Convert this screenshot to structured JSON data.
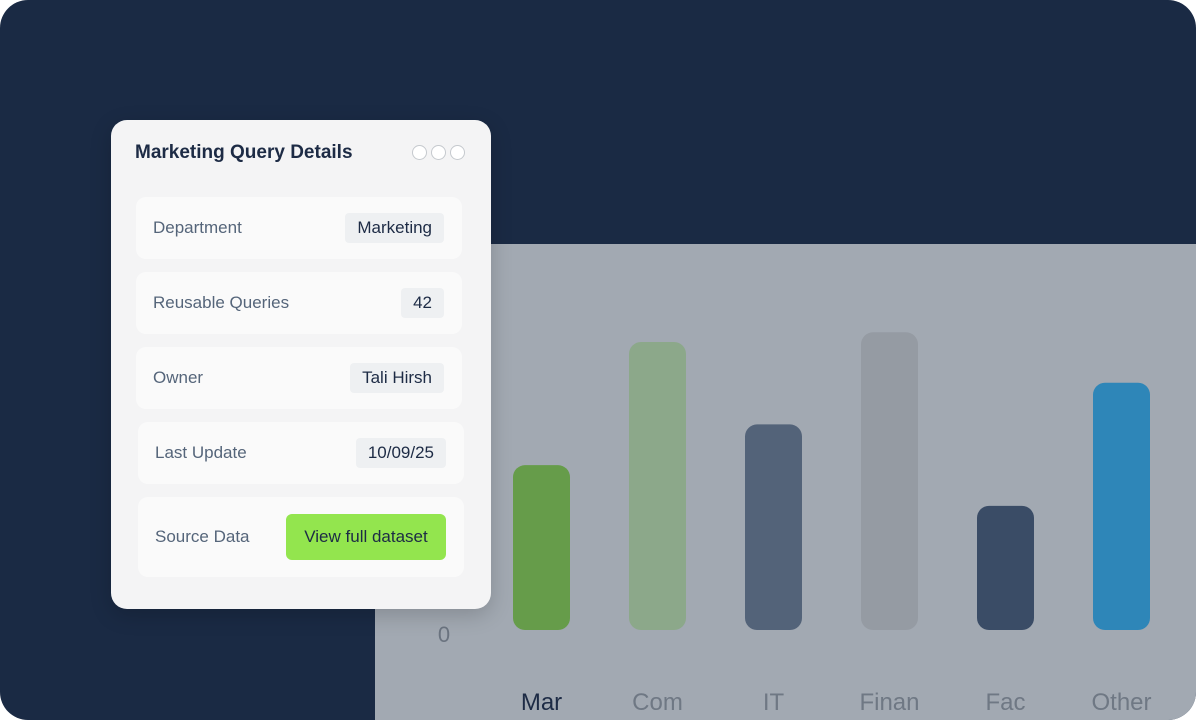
{
  "card": {
    "title": "Marketing Query Details",
    "rows": [
      {
        "label": "Department",
        "value": "Marketing"
      },
      {
        "label": "Reusable Queries",
        "value": "42"
      },
      {
        "label": "Owner",
        "value": "Tali Hirsh"
      },
      {
        "label": "Last Update",
        "value": "10/09/25"
      },
      {
        "label": "Source Data",
        "button": "View full dataset"
      }
    ]
  },
  "colors": {
    "frame_bg": "#1a2a44",
    "chart_bg": "#a2a9b2",
    "accent_button": "#93e54e"
  },
  "chart_data": {
    "type": "bar",
    "categories": [
      "Mar",
      "Com",
      "IT",
      "Finan",
      "Fac",
      "Other"
    ],
    "values": [
      170,
      297,
      212,
      307,
      128,
      255
    ],
    "bar_colors": [
      "#669c4a",
      "#8ca88a",
      "#536379",
      "#959ba3",
      "#3a4c66",
      "#2e86b8"
    ],
    "highlighted_category": "Mar",
    "y_tick_labels": [
      "0"
    ],
    "ylim": [
      0,
      330
    ],
    "title": "",
    "xlabel": "",
    "ylabel": ""
  }
}
